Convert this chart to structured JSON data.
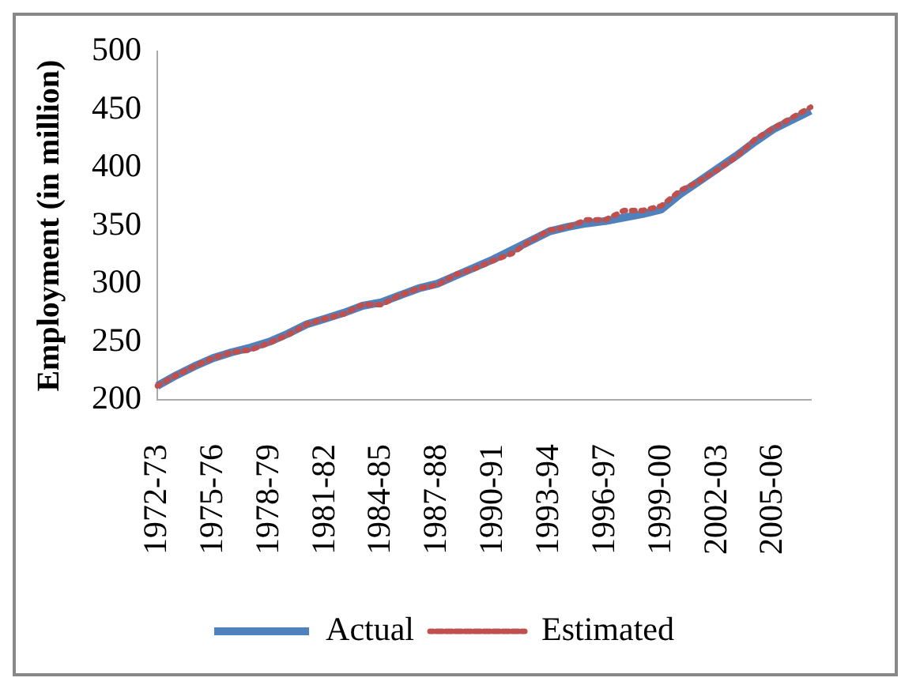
{
  "chart_data": {
    "type": "line",
    "ylabel": "Employment (in million)",
    "categories": [
      "1972-73",
      null,
      null,
      "1975-76",
      null,
      null,
      "1978-79",
      null,
      null,
      "1981-82",
      null,
      null,
      "1984-85",
      null,
      null,
      "1987-88",
      null,
      null,
      "1990-91",
      null,
      null,
      "1993-94",
      null,
      null,
      "1996-97",
      null,
      null,
      "1999-00",
      null,
      null,
      "2002-03",
      null,
      null,
      "2005-06",
      null,
      null
    ],
    "series": [
      {
        "name": "Actual",
        "color": "#4f81bd",
        "line_style": "solid",
        "values": [
          212,
          221,
          229,
          236,
          241,
          245,
          250,
          257,
          265,
          270,
          275,
          281,
          284,
          290,
          296,
          300,
          307,
          314,
          321,
          329,
          337,
          345,
          349,
          352,
          354,
          357,
          360,
          364,
          377,
          388,
          399,
          410,
          422,
          433,
          441,
          449
        ]
      },
      {
        "name": "Estimated",
        "color": "#c0504d",
        "line_style": "dotted",
        "values": [
          212,
          221,
          229,
          236,
          241,
          243,
          249,
          256,
          265,
          270,
          274,
          282,
          282,
          290,
          296,
          299,
          308,
          313,
          320,
          326,
          337,
          346,
          349,
          355,
          355,
          363,
          363,
          367,
          380,
          388,
          398,
          409,
          424,
          434,
          443,
          452
        ]
      }
    ],
    "ylim": [
      200,
      500
    ],
    "yticks": [
      200,
      250,
      300,
      350,
      400,
      450,
      500
    ],
    "grid": false,
    "legend": "bottom",
    "marker": "none"
  }
}
